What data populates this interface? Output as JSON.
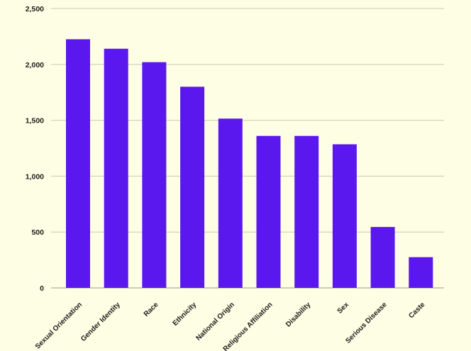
{
  "colors": {
    "background": "#fefee4",
    "bar": "#5a18ee",
    "grid": "#c8c8b8",
    "text": "#1c1c1c"
  },
  "chart_data": {
    "type": "bar",
    "title": "",
    "xlabel": "",
    "ylabel": "",
    "categories": [
      "Sexual Orientation",
      "Gender Identity",
      "Race",
      "Ethnicity",
      "National Origin",
      "Religious Affiliation",
      "Disability",
      "Sex",
      "Serious Disease",
      "Caste"
    ],
    "values": [
      2225,
      2140,
      2020,
      1800,
      1515,
      1360,
      1360,
      1285,
      545,
      275
    ],
    "ylim": [
      0,
      2500
    ],
    "yticks": [
      "0",
      "500",
      "1,000",
      "1,500",
      "2,000",
      "2,500"
    ],
    "grid": true,
    "legend": "none"
  }
}
